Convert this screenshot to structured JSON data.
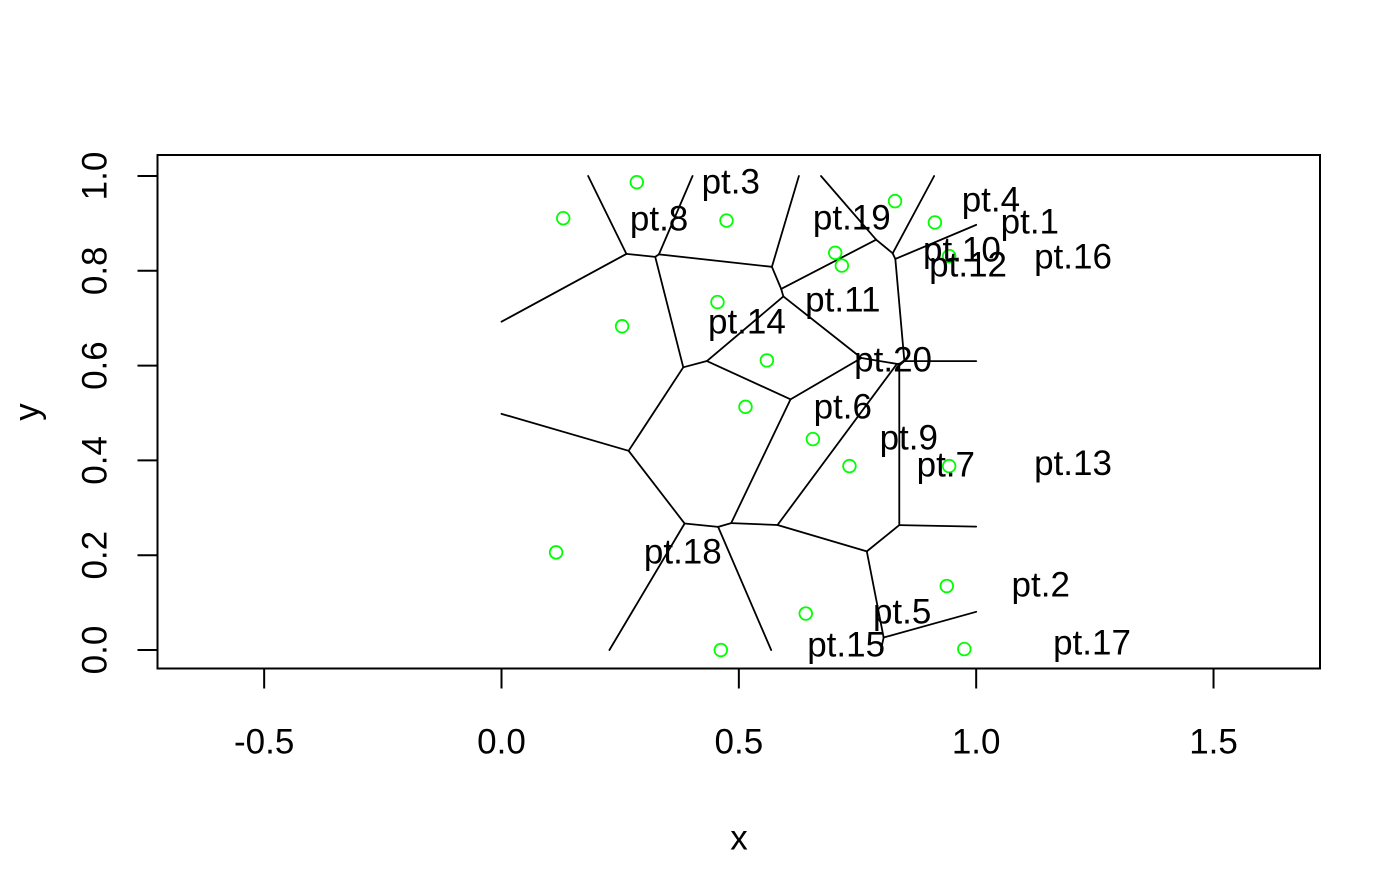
{
  "chart_data": {
    "type": "scatter",
    "subtype": "voronoi-tessellation",
    "title": "",
    "xlabel": "x",
    "ylabel": "y",
    "x_ticks": [
      -0.5,
      0.0,
      0.5,
      1.0,
      1.5
    ],
    "x_tick_labels": [
      "-0.5",
      "0.0",
      "0.5",
      "1.0",
      "1.5"
    ],
    "y_ticks": [
      0.0,
      0.2,
      0.4,
      0.6,
      0.8,
      1.0
    ],
    "y_tick_labels": [
      "0.0",
      "0.2",
      "0.4",
      "0.6",
      "0.8",
      "1.0"
    ],
    "xlim": [
      -0.7247,
      1.7243
    ],
    "ylim": [
      -0.039,
      1.0443
    ],
    "grid": false,
    "legend": "none",
    "voronoi_window": {
      "xmin": 0,
      "xmax": 1,
      "ymin": 0,
      "ymax": 1
    },
    "colors": {
      "point": "#00FF00",
      "label": "#FF0000",
      "edge": "#000000",
      "axis": "#000000"
    },
    "points": [
      {
        "label": "pt.1",
        "x": 0.913,
        "y": 0.902,
        "label_x": 1.113,
        "label_y": 0.903
      },
      {
        "label": "pt.2",
        "x": 0.938,
        "y": 0.135,
        "label_x": 1.136,
        "label_y": 0.137
      },
      {
        "label": "pt.3",
        "x": 0.285,
        "y": 0.987,
        "label_x": 0.483,
        "label_y": 0.987
      },
      {
        "label": "pt.4",
        "x": 0.829,
        "y": 0.947,
        "label_x": 1.031,
        "label_y": 0.949
      },
      {
        "label": "pt.5",
        "x": 0.641,
        "y": 0.077,
        "label_x": 0.844,
        "label_y": 0.08
      },
      {
        "label": "pt.6",
        "x": 0.514,
        "y": 0.513,
        "label_x": 0.719,
        "label_y": 0.513
      },
      {
        "label": "pt.7",
        "x": 0.733,
        "y": 0.388,
        "label_x": 0.936,
        "label_y": 0.39
      },
      {
        "label": "pt.8",
        "x": 0.13,
        "y": 0.911,
        "label_x": 0.332,
        "label_y": 0.909
      },
      {
        "label": "pt.9",
        "x": 0.656,
        "y": 0.445,
        "label_x": 0.858,
        "label_y": 0.447
      },
      {
        "label": "pt.10",
        "x": 0.703,
        "y": 0.838,
        "label_x": 0.97,
        "label_y": 0.844
      },
      {
        "label": "pt.11",
        "x": 0.455,
        "y": 0.734,
        "label_x": 0.719,
        "label_y": 0.738
      },
      {
        "label": "pt.12",
        "x": 0.717,
        "y": 0.811,
        "label_x": 0.983,
        "label_y": 0.812
      },
      {
        "label": "pt.13",
        "x": 0.943,
        "y": 0.388,
        "label_x": 1.204,
        "label_y": 0.394
      },
      {
        "label": "pt.14",
        "x": 0.254,
        "y": 0.683,
        "label_x": 0.517,
        "label_y": 0.692
      },
      {
        "label": "pt.15",
        "x": 0.462,
        "y": 0.0,
        "label_x": 0.726,
        "label_y": 0.011
      },
      {
        "label": "pt.16",
        "x": 0.943,
        "y": 0.831,
        "label_x": 1.204,
        "label_y": 0.829
      },
      {
        "label": "pt.17",
        "x": 0.975,
        "y": 0.002,
        "label_x": 1.244,
        "label_y": 0.015
      },
      {
        "label": "pt.18",
        "x": 0.115,
        "y": 0.206,
        "label_x": 0.382,
        "label_y": 0.207
      },
      {
        "label": "pt.19",
        "x": 0.474,
        "y": 0.906,
        "label_x": 0.738,
        "label_y": 0.911
      },
      {
        "label": "pt.20",
        "x": 0.559,
        "y": 0.611,
        "label_x": 0.825,
        "label_y": 0.612
      }
    ]
  }
}
